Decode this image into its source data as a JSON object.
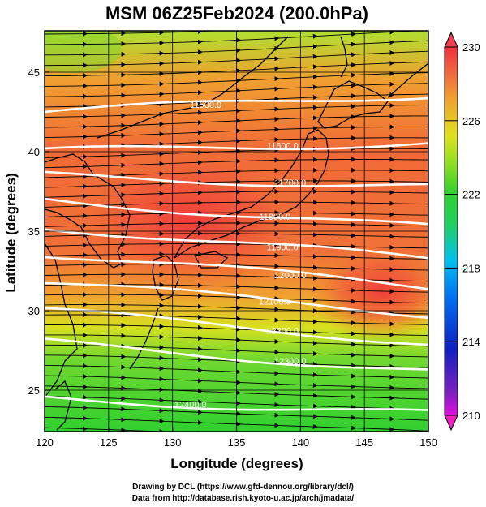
{
  "title": "MSM 06Z25Feb2024 (200.0hPa)",
  "map": {
    "xlabel": "Longitude (degrees)",
    "ylabel": "Latitude  (degrees)",
    "xlim": [
      120,
      150
    ],
    "ylim": [
      22.4,
      47.6
    ],
    "xticks": [
      120,
      125,
      130,
      135,
      140,
      145,
      150
    ],
    "yticks": [
      25,
      30,
      35,
      40,
      45
    ],
    "grid": true
  },
  "temperature_colorbar": {
    "min": 210,
    "max": 230,
    "tick_labels": [
      "230",
      "226",
      "222",
      "218",
      "214",
      "210"
    ],
    "colors": [
      "#e010e0",
      "#6030c0",
      "#1020c0",
      "#0070f0",
      "#00c0f0",
      "#20d0a0",
      "#30d030",
      "#90e020",
      "#e0e020",
      "#f0b030",
      "#f08030",
      "#f05040",
      "#f03040"
    ]
  },
  "height_contours": [
    {
      "value": 11500,
      "label": "11500.0",
      "lat_west": 42.5,
      "lat_east": 43.6
    },
    {
      "value": 11600,
      "label": "11600.0",
      "lat_west": 40.0,
      "lat_east": 40.6
    },
    {
      "value": 11700,
      "label": "11700.0",
      "lat_west": 38.5,
      "lat_east": 37.8
    },
    {
      "value": 11800,
      "label": "11800.0",
      "lat_west": 37.0,
      "lat_east": 35.2
    },
    {
      "value": 11900,
      "label": "11900.0",
      "lat_west": 35.3,
      "lat_east": 33.2
    },
    {
      "value": 12000,
      "label": "12000.0",
      "lat_west": 33.6,
      "lat_east": 31.5
    },
    {
      "value": 12100,
      "label": "12100.0",
      "lat_west": 31.8,
      "lat_east": 29.8
    },
    {
      "value": 12200,
      "label": "12200.0",
      "lat_west": 30.0,
      "lat_east": 28.0
    },
    {
      "value": 12300,
      "label": "12300.0",
      "lat_west": 28.0,
      "lat_east": 26.2
    },
    {
      "value": 12400,
      "label": "12400.0",
      "lat_west": 24.5,
      "lat_east": 23.5
    }
  ],
  "credits": {
    "drawing": "Drawing by DCL (https://www.gfd-dennou.org/library/dcl/)",
    "data": "Data from http://database.rish.kyoto-u.ac.jp/arch/jmadata/"
  }
}
